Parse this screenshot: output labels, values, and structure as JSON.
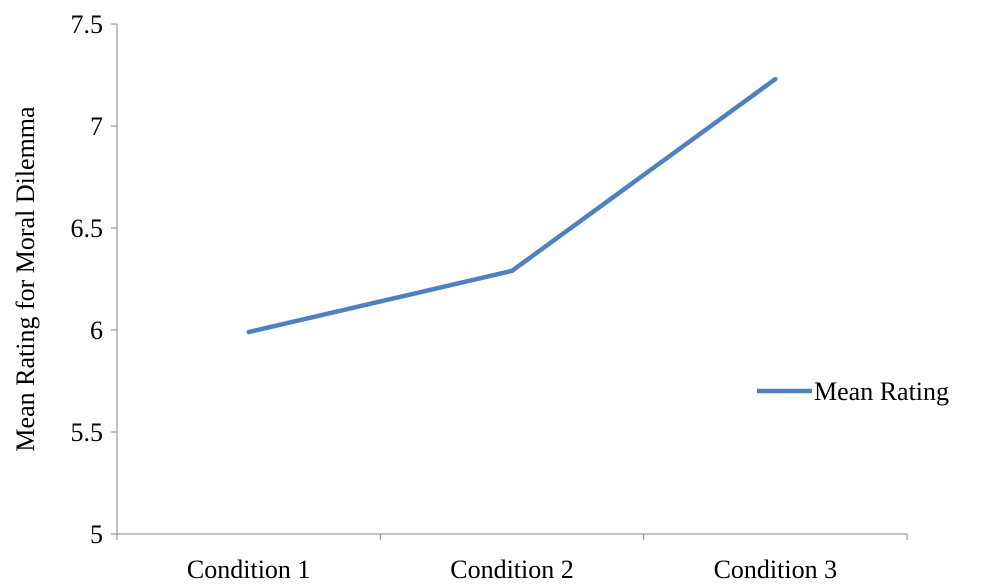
{
  "chart_data": {
    "type": "line",
    "categories": [
      "Condition 1",
      "Condition 2",
      "Condition 3"
    ],
    "series": [
      {
        "name": "Mean Rating",
        "values": [
          5.99,
          6.29,
          7.23
        ]
      }
    ],
    "title": "",
    "xlabel": "",
    "ylabel": "Mean Rating for Moral Dilemma",
    "ylim": [
      5,
      7.5
    ],
    "yticks": [
      "5",
      "5.5",
      "6",
      "6.5",
      "7",
      "7.5"
    ],
    "grid": false,
    "legend": "right",
    "colors": {
      "series": "#4f81bd",
      "axis": "#868686"
    }
  }
}
